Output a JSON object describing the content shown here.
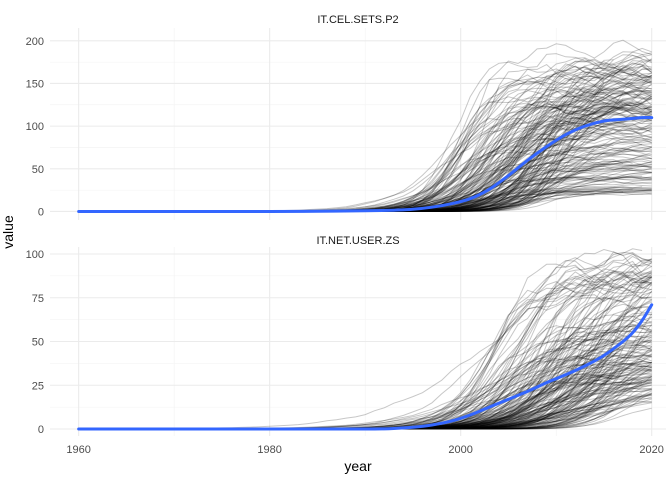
{
  "chart_data": {
    "type": "line",
    "xlabel": "year",
    "ylabel": "value",
    "xlim": [
      1957,
      2021.5
    ],
    "x_ticks": [
      1960,
      1980,
      2000,
      2020
    ],
    "x_tick_labels": [
      "1960",
      "1980",
      "2000",
      "2020"
    ],
    "grid": true,
    "facets": [
      {
        "title": "IT.CEL.SETS.P2",
        "ylim": [
          -10,
          215
        ],
        "y_ticks": [
          0,
          50,
          100,
          150,
          200
        ],
        "y_tick_labels": [
          "0",
          "50",
          "100",
          "150",
          "200"
        ],
        "individual_series_count": 200,
        "trend": {
          "color": "#3366ff",
          "x": [
            1960,
            1970,
            1980,
            1985,
            1990,
            1993,
            1995,
            1997,
            1999,
            2001,
            2003,
            2005,
            2007,
            2009,
            2011,
            2013,
            2015,
            2017,
            2019,
            2020
          ],
          "y": [
            0,
            0,
            0,
            0.2,
            0.8,
            1.5,
            2.5,
            5,
            9,
            15,
            26,
            42,
            60,
            76,
            90,
            100,
            106,
            108,
            110,
            110
          ]
        }
      },
      {
        "title": "IT.NET.USER.ZS",
        "ylim": [
          -4,
          104
        ],
        "y_ticks": [
          0,
          25,
          50,
          75,
          100
        ],
        "y_tick_labels": [
          "0",
          "25",
          "50",
          "75",
          "100"
        ],
        "individual_series_count": 200,
        "trend": {
          "color": "#3366ff",
          "x": [
            1960,
            1970,
            1980,
            1990,
            1993,
            1995,
            1997,
            1999,
            2001,
            2003,
            2005,
            2007,
            2009,
            2011,
            2013,
            2015,
            2017,
            2018,
            2019,
            2020
          ],
          "y": [
            0,
            0,
            0,
            0,
            0.3,
            1,
            2.3,
            4.5,
            8,
            12.5,
            17,
            21.5,
            26.5,
            31,
            36,
            42,
            50,
            55,
            62,
            71
          ]
        }
      }
    ]
  }
}
